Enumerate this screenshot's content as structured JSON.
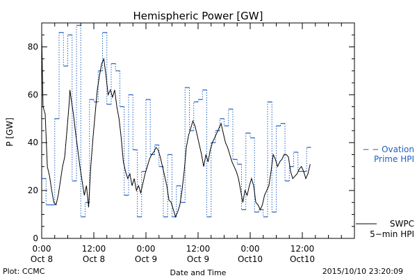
{
  "chart_data": {
    "type": "line",
    "title": "Hemispheric Power [GW]",
    "xlabel": "Date and Time",
    "ylabel": "P [GW]",
    "x_unit": "hours since 2015-10-08 00:00 UT",
    "xlim": [
      0,
      72
    ],
    "ylim": [
      0,
      90
    ],
    "x_ticks": [
      {
        "value": 0,
        "time": "0:00",
        "date": "Oct 8"
      },
      {
        "value": 12,
        "time": "12:00",
        "date": "Oct 8"
      },
      {
        "value": 24,
        "time": "0:00",
        "date": "Oct 9"
      },
      {
        "value": 36,
        "time": "12:00",
        "date": "Oct 9"
      },
      {
        "value": 48,
        "time": "0:00",
        "date": "Oct10"
      },
      {
        "value": 60,
        "time": "12:00",
        "date": "Oct10"
      }
    ],
    "y_ticks": [
      0,
      20,
      40,
      60,
      80
    ],
    "series": [
      {
        "name": "SWPC 5-min HPI",
        "label_lines": [
          "SWPC",
          "5−min HPI"
        ],
        "color": "#000000",
        "style": "solid",
        "points": [
          [
            0,
            85
          ],
          [
            0.3,
            55
          ],
          [
            0.8,
            52
          ],
          [
            1.3,
            30
          ],
          [
            1.8,
            26
          ],
          [
            2.3,
            20
          ],
          [
            2.8,
            15
          ],
          [
            3.3,
            14
          ],
          [
            3.8,
            18
          ],
          [
            4.3,
            24
          ],
          [
            4.8,
            30
          ],
          [
            5.3,
            34
          ],
          [
            5.8,
            45
          ],
          [
            6.3,
            56
          ],
          [
            6.5,
            62
          ],
          [
            6.8,
            58
          ],
          [
            7.3,
            52
          ],
          [
            7.8,
            44
          ],
          [
            8.3,
            37
          ],
          [
            8.8,
            30
          ],
          [
            9.3,
            24
          ],
          [
            9.8,
            18
          ],
          [
            10.3,
            22
          ],
          [
            10.8,
            13
          ],
          [
            11.3,
            30
          ],
          [
            11.8,
            42
          ],
          [
            12.3,
            52
          ],
          [
            12.8,
            62
          ],
          [
            13.3,
            68
          ],
          [
            13.8,
            73
          ],
          [
            14.3,
            75
          ],
          [
            14.8,
            68
          ],
          [
            15.3,
            60
          ],
          [
            15.8,
            62
          ],
          [
            16.3,
            59
          ],
          [
            16.8,
            62
          ],
          [
            17.3,
            55
          ],
          [
            17.8,
            50
          ],
          [
            18.3,
            42
          ],
          [
            18.8,
            32
          ],
          [
            19.3,
            28
          ],
          [
            19.8,
            25
          ],
          [
            20.3,
            27
          ],
          [
            20.8,
            22
          ],
          [
            21.3,
            25
          ],
          [
            21.8,
            20
          ],
          [
            22.3,
            22
          ],
          [
            22.8,
            19
          ],
          [
            23.3,
            23
          ],
          [
            23.8,
            27
          ],
          [
            24.3,
            30
          ],
          [
            24.8,
            33
          ],
          [
            25.3,
            35
          ],
          [
            25.8,
            36
          ],
          [
            26.3,
            38
          ],
          [
            26.8,
            37
          ],
          [
            27.3,
            34
          ],
          [
            27.8,
            30
          ],
          [
            28.3,
            26
          ],
          [
            28.8,
            22
          ],
          [
            29.3,
            16
          ],
          [
            29.8,
            15
          ],
          [
            30.3,
            12
          ],
          [
            30.8,
            9
          ],
          [
            31.3,
            11
          ],
          [
            31.8,
            14
          ],
          [
            32.3,
            20
          ],
          [
            32.8,
            28
          ],
          [
            33.3,
            38
          ],
          [
            33.8,
            43
          ],
          [
            34.3,
            46
          ],
          [
            34.8,
            49
          ],
          [
            35.3,
            47
          ],
          [
            35.8,
            43
          ],
          [
            36.3,
            39
          ],
          [
            36.8,
            35
          ],
          [
            37.3,
            30
          ],
          [
            37.8,
            35
          ],
          [
            38.3,
            32
          ],
          [
            38.8,
            37
          ],
          [
            39.3,
            40
          ],
          [
            39.8,
            42
          ],
          [
            40.3,
            44
          ],
          [
            40.8,
            46
          ],
          [
            41.3,
            48
          ],
          [
            41.8,
            44
          ],
          [
            42.3,
            40
          ],
          [
            42.8,
            38
          ],
          [
            43.3,
            35
          ],
          [
            43.8,
            32
          ],
          [
            44.3,
            30
          ],
          [
            44.8,
            28
          ],
          [
            45.3,
            25
          ],
          [
            45.8,
            20
          ],
          [
            46.3,
            15
          ],
          [
            46.8,
            20
          ],
          [
            47.3,
            18
          ],
          [
            47.8,
            22
          ],
          [
            48.3,
            25
          ],
          [
            48.8,
            22
          ],
          [
            49.3,
            15
          ],
          [
            49.8,
            14
          ],
          [
            50.3,
            12
          ],
          [
            50.8,
            14
          ],
          [
            51.3,
            18
          ],
          [
            51.8,
            20
          ],
          [
            52.3,
            22
          ],
          [
            52.8,
            28
          ],
          [
            53.3,
            35
          ],
          [
            53.8,
            33
          ],
          [
            54.3,
            30
          ],
          [
            54.8,
            32
          ],
          [
            55.3,
            33
          ],
          [
            55.8,
            35
          ],
          [
            56.3,
            35
          ],
          [
            56.8,
            34
          ],
          [
            57.3,
            28
          ],
          [
            57.8,
            25
          ],
          [
            58.3,
            26
          ],
          [
            58.8,
            27
          ],
          [
            59.3,
            29
          ],
          [
            59.8,
            30
          ],
          [
            60.3,
            28
          ],
          [
            60.8,
            25
          ],
          [
            61.3,
            27
          ],
          [
            61.8,
            31
          ]
        ]
      },
      {
        "name": "Ovation Prime HPI",
        "label_lines": [
          "− − Ovation",
          "Prime HPI"
        ],
        "color": "#1f5fbf",
        "style": "stepped-dotted",
        "points": [
          [
            0,
            25
          ],
          [
            1,
            14
          ],
          [
            3,
            50
          ],
          [
            4,
            86
          ],
          [
            5,
            72
          ],
          [
            6,
            85
          ],
          [
            7,
            24
          ],
          [
            8,
            89
          ],
          [
            9,
            9
          ],
          [
            10,
            15
          ],
          [
            11,
            58
          ],
          [
            12,
            57
          ],
          [
            13,
            70
          ],
          [
            14,
            86
          ],
          [
            15,
            56
          ],
          [
            16,
            73
          ],
          [
            17,
            70
          ],
          [
            18,
            55
          ],
          [
            19,
            18
          ],
          [
            20,
            60
          ],
          [
            21,
            37
          ],
          [
            22,
            9
          ],
          [
            23,
            28
          ],
          [
            24,
            58
          ],
          [
            25,
            35
          ],
          [
            26,
            39
          ],
          [
            27,
            30
          ],
          [
            28,
            9
          ],
          [
            29,
            35
          ],
          [
            30,
            9
          ],
          [
            31,
            22
          ],
          [
            32,
            15
          ],
          [
            33,
            63
          ],
          [
            34,
            45
          ],
          [
            35,
            57
          ],
          [
            36,
            58
          ],
          [
            37,
            62
          ],
          [
            38,
            9
          ],
          [
            39,
            40
          ],
          [
            40,
            45
          ],
          [
            41,
            50
          ],
          [
            42,
            47
          ],
          [
            43,
            54
          ],
          [
            44,
            33
          ],
          [
            45,
            31
          ],
          [
            46,
            12
          ],
          [
            47,
            44
          ],
          [
            48,
            42
          ],
          [
            49,
            11
          ],
          [
            50,
            12
          ],
          [
            51,
            9
          ],
          [
            52,
            57
          ],
          [
            53,
            11
          ],
          [
            54,
            47
          ],
          [
            55,
            48
          ],
          [
            56,
            24
          ],
          [
            57,
            30
          ],
          [
            58,
            36
          ],
          [
            59,
            28
          ],
          [
            60,
            28
          ],
          [
            61,
            38
          ]
        ]
      }
    ],
    "grid": false,
    "footer_left": "Plot: CCMC",
    "timestamp": "2015/10/10 23:20:09",
    "colors": {
      "axes": "#000000",
      "ovation": "#1f5fbf"
    }
  }
}
